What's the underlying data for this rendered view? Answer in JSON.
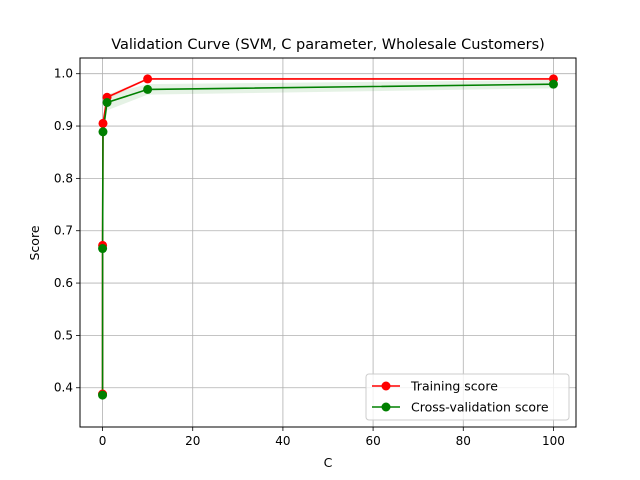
{
  "chart_data": {
    "type": "line",
    "title": "Validation Curve (SVM, C parameter, Wholesale Customers)",
    "xlabel": "C",
    "ylabel": "Score",
    "xlim": [
      -5,
      105
    ],
    "ylim": [
      0.325,
      1.03
    ],
    "xticks": [
      0,
      20,
      40,
      60,
      80,
      100
    ],
    "yticks": [
      0.4,
      0.5,
      0.6,
      0.7,
      0.8,
      0.9,
      1.0
    ],
    "xtick_labels": [
      "0",
      "20",
      "40",
      "60",
      "80",
      "100"
    ],
    "ytick_labels": [
      "0.4",
      "0.5",
      "0.6",
      "0.7",
      "0.8",
      "0.9",
      "1.0"
    ],
    "grid": true,
    "legend_position": "lower-right",
    "x": [
      0.001,
      0.01,
      0.1,
      1,
      10,
      100
    ],
    "series": [
      {
        "name": "Training score",
        "color": "#ff0000",
        "fill_color": "#ff0000",
        "values": [
          0.388,
          0.672,
          0.905,
          0.955,
          0.99,
          0.99
        ],
        "std": [
          0.002,
          0.003,
          0.004,
          0.004,
          0.002,
          0.002
        ]
      },
      {
        "name": "Cross-validation score",
        "color": "#008000",
        "fill_color": "#008000",
        "values": [
          0.386,
          0.666,
          0.889,
          0.945,
          0.97,
          0.98
        ],
        "std": [
          0.004,
          0.01,
          0.018,
          0.015,
          0.01,
          0.008
        ]
      }
    ]
  }
}
